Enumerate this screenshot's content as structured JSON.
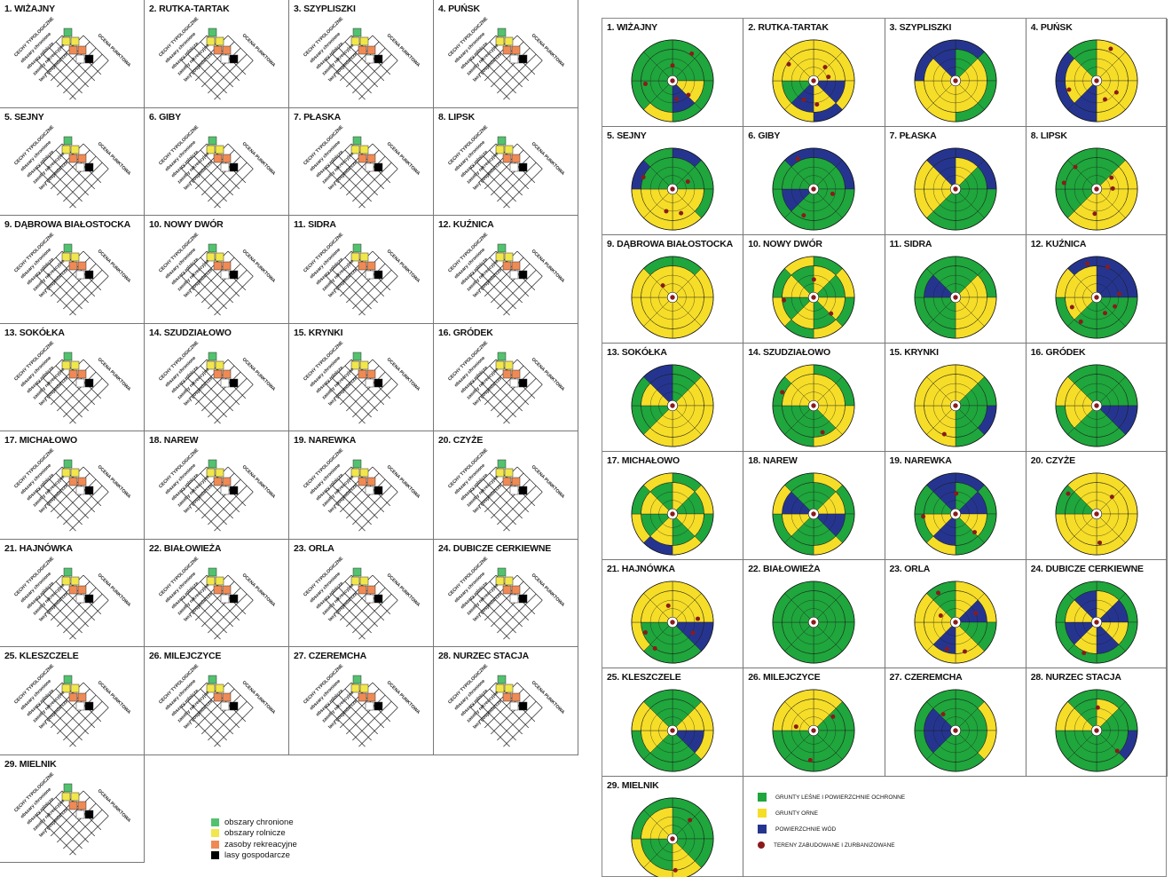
{
  "colors": {
    "protected": "#53c26e",
    "agricultural": "#f1e64b",
    "recreational": "#ef8a55",
    "managed_forest": "#000000",
    "forest": "#1fa63c",
    "arable": "#f6dd28",
    "water": "#25358f",
    "urban": "#8a1b1b"
  },
  "left_labels": {
    "cechy": "CECHY TYPOLOGICZNE",
    "ocena": "OCENA PUNKTOWA",
    "row1": "obszary chronione",
    "row2": "obszary rolnicze",
    "row3": "zasoby rekreacyjne",
    "row4": "lasy gospodarcze"
  },
  "left_legend": [
    {
      "label": "obszary chronione",
      "color_key": "protected"
    },
    {
      "label": "obszary rolnicze",
      "color_key": "agricultural"
    },
    {
      "label": "zasoby rekreacyjne",
      "color_key": "recreational"
    },
    {
      "label": "lasy gospodarcze",
      "color_key": "managed_forest"
    }
  ],
  "right_legend": [
    {
      "label": "GRUNTY LEŚNE I POWIERZCHNIE OCHRONNE",
      "color_key": "forest",
      "shape": "square"
    },
    {
      "label": "GRUNTY ORNE",
      "color_key": "arable",
      "shape": "square"
    },
    {
      "label": "POWIERZCHNIE WÓD",
      "color_key": "water",
      "shape": "square"
    },
    {
      "label": "TERENY ZABUDOWANE I ZURBANIZOWANE",
      "color_key": "urban",
      "shape": "dot"
    }
  ],
  "municipalities": [
    {
      "name": "1. WIŻAJNY",
      "sectors": "GGYBGGGG",
      "outer": "GGGGYGGG",
      "dots": 5
    },
    {
      "name": "2. RUTKA-TARTAK",
      "sectors": "YYBYBGYY",
      "outer": "YYYBYYYY",
      "dots": 5
    },
    {
      "name": "3. SZYPLISZKI",
      "sectors": "GYYYYYYB",
      "outer": "BGGGYYBB",
      "dots": 0
    },
    {
      "name": "4. PUŃSK",
      "sectors": "YYYYBYYG",
      "outer": "YYYYBBBG",
      "dots": 4
    },
    {
      "name": "5. SEJNY",
      "sectors": "GGYYYYGG",
      "outer": "BGGYYYBG",
      "dots": 4
    },
    {
      "name": "6. GIBY",
      "sectors": "GGGGGBGG",
      "outer": "BBGGGGGB",
      "dots": 3
    },
    {
      "name": "7. PŁASKA",
      "sectors": "YGGGGYYB",
      "outer": "BBGGGYYB",
      "dots": 0
    },
    {
      "name": "8. LIPSK",
      "sectors": "GYYYYGGG",
      "outer": "GYYYYGGG",
      "dots": 5
    },
    {
      "name": "9. DĄBROWA BIAŁOSTOCKA",
      "sectors": "YYYYYYYY",
      "outer": "GYYYYYYG",
      "dots": 1
    },
    {
      "name": "10. NOWY DWÓR",
      "sectors": "YGYGYGYG",
      "outer": "GYGYGYGY",
      "dots": 3
    },
    {
      "name": "11. SIDRA",
      "sectors": "GYYYGGBG",
      "outer": "GGYYGGGG",
      "dots": 0
    },
    {
      "name": "12. KUŹNICA",
      "sectors": "BBGGGYYY",
      "outer": "BBGGGGYB",
      "dots": 7
    },
    {
      "name": "13. SOKÓŁKA",
      "sectors": "GYYYYGYB",
      "outer": "GYYYYGGB",
      "dots": 0
    },
    {
      "name": "14. SZUDZIAŁOWO",
      "sectors": "YYYGGGYY",
      "outer": "GGYYGGGY",
      "dots": 2
    },
    {
      "name": "15. KRYNKI",
      "sectors": "YGGGYYYY",
      "outer": "YGBGYYYY",
      "dots": 1
    },
    {
      "name": "16. GRÓDEK",
      "sectors": "GGBGGYYG",
      "outer": "GGBGGGYG",
      "dots": 0
    },
    {
      "name": "17. MICHAŁOWO",
      "sectors": "YGYGYGYG",
      "outer": "GYGYBYGY",
      "dots": 0
    },
    {
      "name": "18. NAREW",
      "sectors": "GYBGGYBG",
      "outer": "YGGYGGYG",
      "dots": 0
    },
    {
      "name": "19. NAREWKA",
      "sectors": "GBYGBYGB",
      "outer": "BGGGYGGB",
      "dots": 3
    },
    {
      "name": "20. CZYŻE",
      "sectors": "YYYYYYGY",
      "outer": "YYYYYYGY",
      "dots": 3
    },
    {
      "name": "21. HAJNÓWKA",
      "sectors": "YYBGGGYY",
      "outer": "YYBGGYYY",
      "dots": 5
    },
    {
      "name": "22. BIAŁOWIEŻA",
      "sectors": "GGGGGGGG",
      "outer": "GGGGGGGG",
      "dots": 0
    },
    {
      "name": "23. ORLA",
      "sectors": "YBGYBYYG",
      "outer": "YYGYYYYG",
      "dots": 5
    },
    {
      "name": "24. DUBICZE CERKIEWNE",
      "sectors": "YBYBYBYB",
      "outer": "GGGGGGGG",
      "dots": 1
    },
    {
      "name": "25. KLESZCZELE",
      "sectors": "GYBGGYYG",
      "outer": "GYYGGGYG",
      "dots": 0
    },
    {
      "name": "26. MILEJCZYCE",
      "sectors": "YGGGGGYY",
      "outer": "YGGGGGYY",
      "dots": 3
    },
    {
      "name": "27. CZEREMCHA",
      "sectors": "GGGGGBBG",
      "outer": "GYYGGGGG",
      "dots": 1
    },
    {
      "name": "28. NURZEC STACJA",
      "sectors": "YGGGGGYG",
      "outer": "GGBGGGYG",
      "dots": 2
    },
    {
      "name": "29. MIELNIK",
      "sectors": "GGGYGGYY",
      "outer": "GGGYYYGG",
      "dots": 2
    }
  ]
}
